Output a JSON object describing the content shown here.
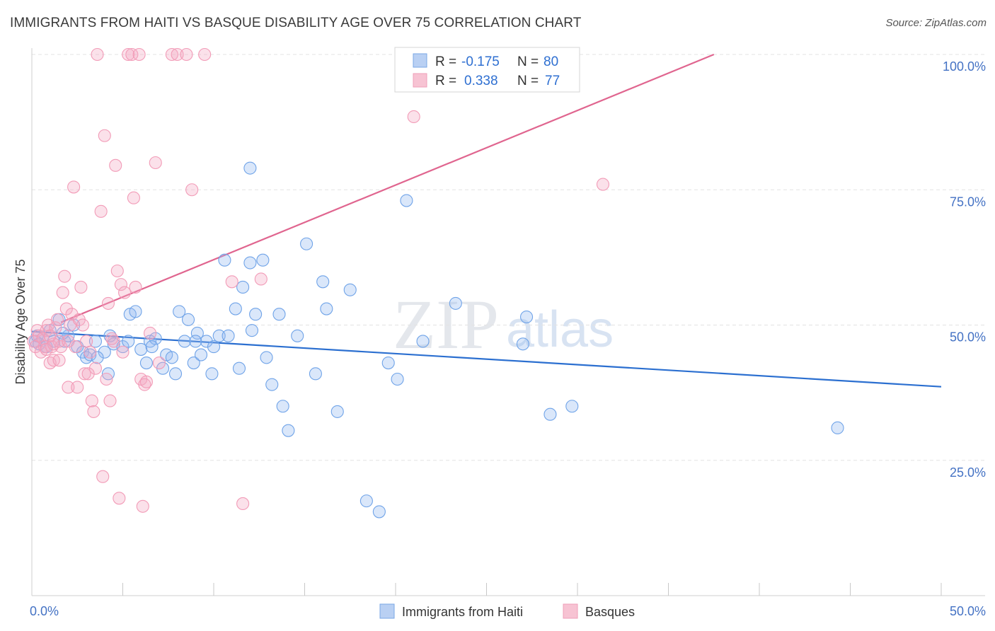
{
  "title": "IMMIGRANTS FROM HAITI VS BASQUE DISABILITY AGE OVER 75 CORRELATION CHART",
  "source": "Source: ZipAtlas.com",
  "watermark": {
    "zip": "ZIP",
    "atlas": "atlas"
  },
  "chart_data": {
    "type": "scatter",
    "ylabel": "Disability Age Over 75",
    "xlim": [
      0,
      50
    ],
    "ylim": [
      0,
      100
    ],
    "x_ticks": [
      "0.0%",
      "50.0%"
    ],
    "y_ticks": [
      {
        "value": 25,
        "label": "25.0%"
      },
      {
        "value": 50,
        "label": "50.0%"
      },
      {
        "value": 75,
        "label": "75.0%"
      },
      {
        "value": 100,
        "label": "100.0%"
      }
    ],
    "grid": true,
    "legend_position": "top-center",
    "legend": [
      {
        "r_label": "R =",
        "r_value": "-0.175",
        "n_label": "N =",
        "n_value": "80"
      },
      {
        "r_label": "R =",
        "r_value": "0.338",
        "n_label": "N =",
        "n_value": "77"
      }
    ],
    "series": [
      {
        "name": "Immigrants from Haiti",
        "color": "#6fa3e8",
        "line_color": "#2b6fd0",
        "trend": {
          "x": [
            0,
            50
          ],
          "y": [
            48.8,
            38.6
          ]
        },
        "points": [
          [
            0.2,
            47
          ],
          [
            0.3,
            48
          ],
          [
            0.4,
            46.5
          ],
          [
            0.6,
            47.5
          ],
          [
            0.8,
            46
          ],
          [
            1.0,
            49
          ],
          [
            1.2,
            47
          ],
          [
            1.5,
            51
          ],
          [
            1.8,
            47
          ],
          [
            2.0,
            48
          ],
          [
            2.3,
            50
          ],
          [
            2.5,
            46
          ],
          [
            2.8,
            45
          ],
          [
            3.0,
            44
          ],
          [
            3.2,
            44.5
          ],
          [
            3.5,
            47
          ],
          [
            4.0,
            45
          ],
          [
            4.2,
            41
          ],
          [
            4.3,
            48
          ],
          [
            4.5,
            46.5
          ],
          [
            5.0,
            46
          ],
          [
            5.3,
            47
          ],
          [
            5.4,
            52
          ],
          [
            5.7,
            52.5
          ],
          [
            6.0,
            45.5
          ],
          [
            6.3,
            43
          ],
          [
            6.5,
            47
          ],
          [
            6.8,
            47.5
          ],
          [
            7.2,
            42
          ],
          [
            7.4,
            44.5
          ],
          [
            7.7,
            44
          ],
          [
            7.9,
            41
          ],
          [
            8.1,
            52.5
          ],
          [
            8.4,
            47
          ],
          [
            8.6,
            51
          ],
          [
            8.9,
            43
          ],
          [
            9.1,
            48.5
          ],
          [
            9.3,
            44.5
          ],
          [
            9.6,
            47
          ],
          [
            9.9,
            41
          ],
          [
            10.0,
            46
          ],
          [
            10.3,
            48
          ],
          [
            10.6,
            62
          ],
          [
            10.8,
            48
          ],
          [
            11.2,
            53
          ],
          [
            11.4,
            42
          ],
          [
            11.6,
            57
          ],
          [
            12.0,
            61.5
          ],
          [
            12.1,
            49
          ],
          [
            12.3,
            52
          ],
          [
            12.7,
            62
          ],
          [
            12.9,
            44
          ],
          [
            13.2,
            39
          ],
          [
            13.6,
            52
          ],
          [
            13.8,
            35
          ],
          [
            14.1,
            30.5
          ],
          [
            14.6,
            48
          ],
          [
            15.1,
            65
          ],
          [
            15.6,
            41
          ],
          [
            16.0,
            58
          ],
          [
            16.2,
            53
          ],
          [
            16.8,
            34
          ],
          [
            17.5,
            56.5
          ],
          [
            18.4,
            17.5
          ],
          [
            19.1,
            15.5
          ],
          [
            19.6,
            43
          ],
          [
            20.1,
            40
          ],
          [
            20.6,
            73
          ],
          [
            21.5,
            47
          ],
          [
            23.3,
            54
          ],
          [
            27.0,
            46.5
          ],
          [
            27.2,
            51.5
          ],
          [
            28.5,
            33.5
          ],
          [
            29.7,
            35
          ],
          [
            44.3,
            31
          ],
          [
            12.0,
            79
          ],
          [
            9.0,
            47
          ],
          [
            6.6,
            46
          ],
          [
            3.6,
            44
          ],
          [
            1.7,
            48.5
          ]
        ]
      },
      {
        "name": "Basques",
        "color": "#f29bb7",
        "line_color": "#e0658f",
        "trend": {
          "x": [
            1.6,
            37.5
          ],
          "y": [
            50.5,
            100
          ]
        },
        "points": [
          [
            0.1,
            47
          ],
          [
            0.2,
            46
          ],
          [
            0.3,
            49
          ],
          [
            0.4,
            48
          ],
          [
            0.5,
            45
          ],
          [
            0.6,
            47.5
          ],
          [
            0.7,
            46
          ],
          [
            0.8,
            49
          ],
          [
            0.9,
            50
          ],
          [
            1.0,
            43
          ],
          [
            1.1,
            46
          ],
          [
            1.2,
            43.5
          ],
          [
            1.3,
            49.5
          ],
          [
            1.4,
            51
          ],
          [
            1.5,
            43.5
          ],
          [
            1.6,
            46
          ],
          [
            1.7,
            56
          ],
          [
            1.8,
            59
          ],
          [
            1.9,
            53
          ],
          [
            2.0,
            38.5
          ],
          [
            2.1,
            50
          ],
          [
            2.2,
            52
          ],
          [
            2.3,
            75.5
          ],
          [
            2.4,
            46
          ],
          [
            2.5,
            38.5
          ],
          [
            2.6,
            51
          ],
          [
            2.7,
            57
          ],
          [
            2.8,
            50
          ],
          [
            2.9,
            41
          ],
          [
            3.0,
            47
          ],
          [
            3.2,
            45
          ],
          [
            3.3,
            36
          ],
          [
            3.4,
            34
          ],
          [
            3.5,
            42
          ],
          [
            3.6,
            100
          ],
          [
            3.8,
            71
          ],
          [
            3.9,
            22
          ],
          [
            4.0,
            85
          ],
          [
            4.1,
            40
          ],
          [
            4.2,
            54
          ],
          [
            4.3,
            36
          ],
          [
            4.5,
            47
          ],
          [
            4.6,
            79.5
          ],
          [
            4.7,
            60
          ],
          [
            4.8,
            18
          ],
          [
            4.9,
            57.5
          ],
          [
            5.0,
            45
          ],
          [
            5.1,
            56
          ],
          [
            5.3,
            100
          ],
          [
            5.5,
            100
          ],
          [
            5.6,
            73.5
          ],
          [
            5.7,
            57
          ],
          [
            5.9,
            100
          ],
          [
            6.0,
            40
          ],
          [
            6.1,
            16.5
          ],
          [
            6.2,
            39
          ],
          [
            6.3,
            39.5
          ],
          [
            6.5,
            48.5
          ],
          [
            6.8,
            80
          ],
          [
            7.0,
            43
          ],
          [
            7.7,
            100
          ],
          [
            8.0,
            100
          ],
          [
            8.5,
            100
          ],
          [
            8.8,
            75
          ],
          [
            9.5,
            100
          ],
          [
            11.0,
            58
          ],
          [
            11.6,
            17
          ],
          [
            12.6,
            58.5
          ],
          [
            21.0,
            88.5
          ],
          [
            31.4,
            76
          ],
          [
            1.5,
            47
          ],
          [
            2.0,
            47
          ],
          [
            0.8,
            45.5
          ],
          [
            1.2,
            46.5
          ],
          [
            3.1,
            41
          ],
          [
            4.4,
            47.5
          ],
          [
            1.0,
            48
          ]
        ]
      }
    ]
  }
}
